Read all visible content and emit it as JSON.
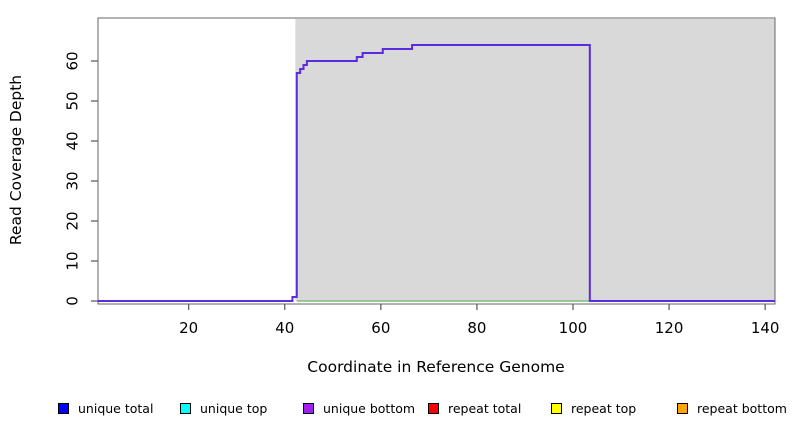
{
  "figure": {
    "xlabel": "Coordinate in Reference Genome",
    "ylabel": "Read Coverage Depth"
  },
  "chart_data": {
    "type": "line",
    "style": "step",
    "title": "",
    "xlabel": "Coordinate in Reference Genome",
    "ylabel": "Read Coverage Depth",
    "xlim": [
      1,
      142
    ],
    "ylim": [
      0,
      70
    ],
    "x_ticks": [
      20,
      40,
      60,
      80,
      100,
      120,
      140
    ],
    "y_ticks": [
      0,
      10,
      20,
      30,
      40,
      50,
      60
    ],
    "grid": false,
    "shaded_region": {
      "x_start": 42.2,
      "x_end": 142,
      "fill": "#d9d9d9"
    },
    "series": [
      {
        "name": "unique total",
        "color": "#5b2be0",
        "line_width": 2,
        "step_points": [
          [
            1,
            0
          ],
          [
            41.6,
            1
          ],
          [
            42.5,
            57
          ],
          [
            43.2,
            58
          ],
          [
            43.9,
            59
          ],
          [
            44.6,
            60
          ],
          [
            55,
            61
          ],
          [
            56.2,
            62
          ],
          [
            60.4,
            63
          ],
          [
            66.5,
            64
          ],
          [
            103.5,
            0
          ],
          [
            142,
            0
          ]
        ]
      },
      {
        "name": "zero baseline",
        "color": "#7cbf7c",
        "line_width": 1.5,
        "step_points": [
          [
            42.5,
            0
          ],
          [
            103.5,
            0
          ]
        ]
      }
    ],
    "legend": {
      "position": "bottom",
      "items": [
        {
          "label": "unique total",
          "color": "#0000ff"
        },
        {
          "label": "unique top",
          "color": "#00ffff"
        },
        {
          "label": "unique bottom",
          "color": "#a020f0"
        },
        {
          "label": "repeat total",
          "color": "#ff0000"
        },
        {
          "label": "repeat top",
          "color": "#ffff00"
        },
        {
          "label": "repeat bottom",
          "color": "#ffa500"
        }
      ]
    }
  }
}
